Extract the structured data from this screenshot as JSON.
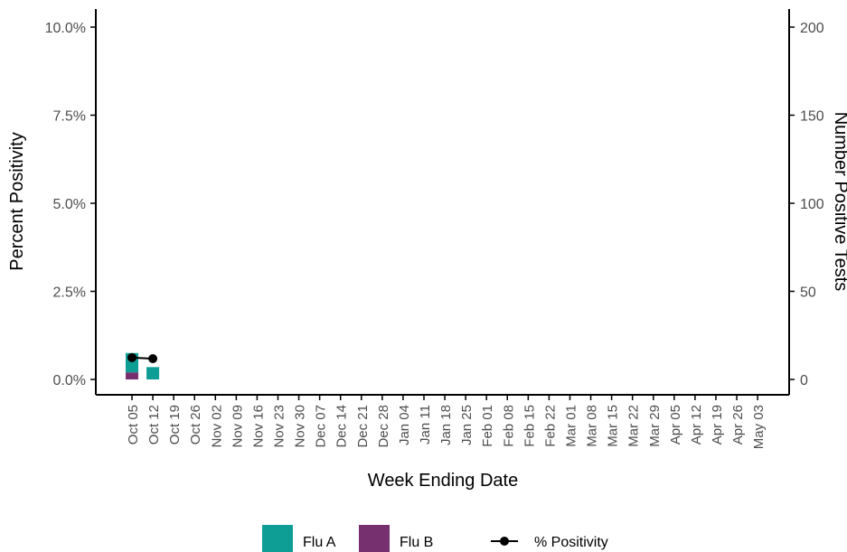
{
  "chart_data": {
    "type": "bar",
    "stacked": true,
    "title": "",
    "xlabel": "Week Ending Date",
    "ylabel_left": "Percent Positivity",
    "ylabel_right": "Number Positive Tests",
    "categories": [
      "Oct 05",
      "Oct 12",
      "Oct 19",
      "Oct 26",
      "Nov 02",
      "Nov 09",
      "Nov 16",
      "Nov 23",
      "Nov 30",
      "Dec 07",
      "Dec 14",
      "Dec 21",
      "Dec 28",
      "Jan 04",
      "Jan 11",
      "Jan 18",
      "Jan 25",
      "Feb 01",
      "Feb 08",
      "Feb 15",
      "Feb 22",
      "Mar 01",
      "Mar 08",
      "Mar 15",
      "Mar 22",
      "Mar 29",
      "Apr 05",
      "Apr 12",
      "Apr 19",
      "Apr 26",
      "May 03"
    ],
    "left_axis": {
      "ylim": [
        0,
        10
      ],
      "ticks": [
        0,
        2.5,
        5,
        7.5,
        10
      ],
      "tick_labels": [
        "0.0%",
        "2.5%",
        "5.0%",
        "7.5%",
        "10.0%"
      ]
    },
    "right_axis": {
      "ylim": [
        0,
        200
      ],
      "ticks": [
        0,
        50,
        100,
        150,
        200
      ],
      "tick_labels": [
        "0",
        "50",
        "100",
        "150",
        "200"
      ]
    },
    "series": [
      {
        "name": "Flu A",
        "kind": "bar",
        "axis": "right",
        "color": "#0e9e96",
        "values": [
          11,
          7,
          null,
          null,
          null,
          null,
          null,
          null,
          null,
          null,
          null,
          null,
          null,
          null,
          null,
          null,
          null,
          null,
          null,
          null,
          null,
          null,
          null,
          null,
          null,
          null,
          null,
          null,
          null,
          null,
          null
        ]
      },
      {
        "name": "Flu B",
        "kind": "bar",
        "axis": "right",
        "color": "#76306f",
        "values": [
          4,
          0,
          null,
          null,
          null,
          null,
          null,
          null,
          null,
          null,
          null,
          null,
          null,
          null,
          null,
          null,
          null,
          null,
          null,
          null,
          null,
          null,
          null,
          null,
          null,
          null,
          null,
          null,
          null,
          null,
          null
        ]
      },
      {
        "name": "% Positivity",
        "kind": "line",
        "axis": "left",
        "color": "#000000",
        "values": [
          0.62,
          0.59,
          null,
          null,
          null,
          null,
          null,
          null,
          null,
          null,
          null,
          null,
          null,
          null,
          null,
          null,
          null,
          null,
          null,
          null,
          null,
          null,
          null,
          null,
          null,
          null,
          null,
          null,
          null,
          null,
          null
        ]
      }
    ],
    "legend": {
      "placement": "bottom",
      "items": [
        {
          "label": "Flu A",
          "kind": "box",
          "color": "#0e9e96"
        },
        {
          "label": "Flu B",
          "kind": "box",
          "color": "#76306f"
        },
        {
          "label": "% Positivity",
          "kind": "line",
          "color": "#000000"
        }
      ]
    },
    "grid": false
  }
}
